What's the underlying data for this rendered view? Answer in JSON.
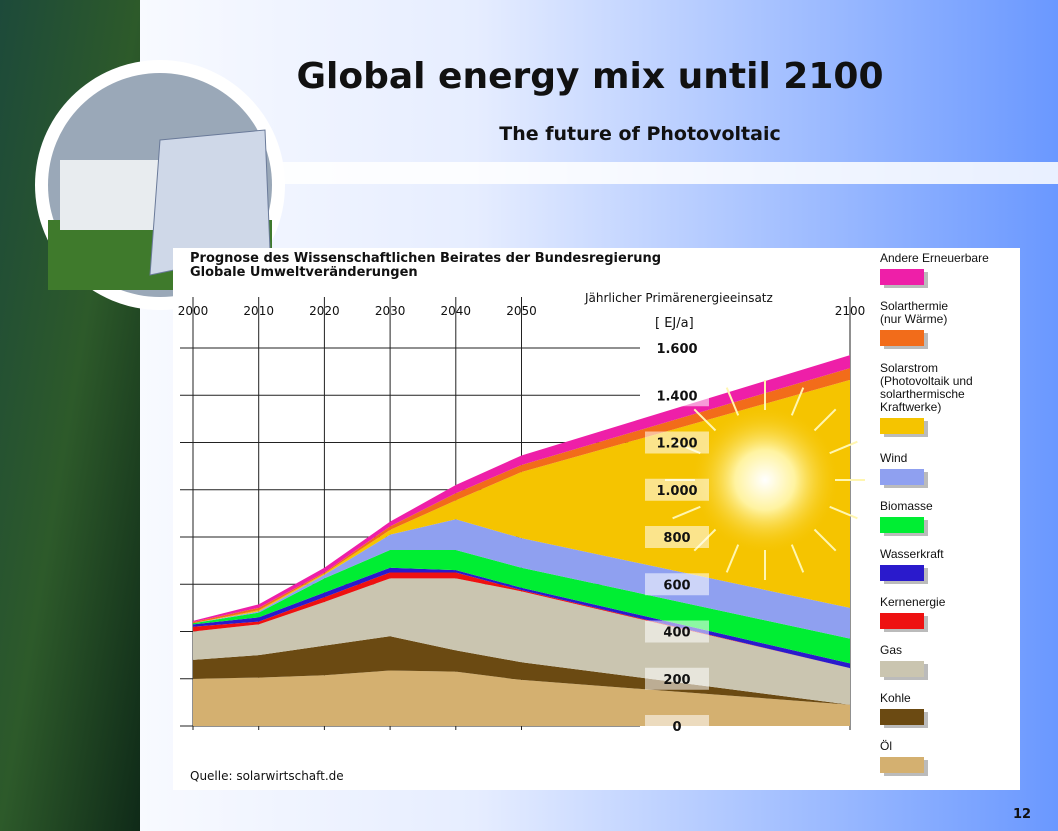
{
  "slide": {
    "title": "Global energy mix until 2100",
    "subtitle": "The future of Photovoltaic",
    "page_number": "12"
  },
  "chart_data": {
    "type": "area",
    "stacked": true,
    "title": "Prognose des Wissenschaftlichen Beirates der Bundesregierung\nGlobale Umweltveränderungen",
    "y_label": "Jährlicher Primärenergieeinsatz",
    "y_unit": "[ EJ/a]",
    "source": "Quelle: solarwirtschaft.de",
    "x": [
      2000,
      2010,
      2020,
      2030,
      2040,
      2050,
      2100
    ],
    "xlim": [
      2000,
      2100
    ],
    "xticks": [
      2000,
      2010,
      2020,
      2030,
      2040,
      2050,
      2100
    ],
    "ylim": [
      0,
      1600
    ],
    "yticks": [
      {
        "value": 1600,
        "label": "1.600"
      },
      {
        "value": 1400,
        "label": "1.400"
      },
      {
        "value": 1200,
        "label": "1.200"
      },
      {
        "value": 1000,
        "label": "1.000"
      },
      800,
      600,
      400,
      200,
      0
    ],
    "grid": true,
    "series": [
      {
        "name": "Öl",
        "color": "#d4b070",
        "values": [
          200,
          205,
          215,
          235,
          230,
          195,
          90
        ]
      },
      {
        "name": "Kohle",
        "color": "#6b4a12",
        "values": [
          80,
          95,
          125,
          145,
          90,
          75,
          0
        ]
      },
      {
        "name": "Gas",
        "color": "#cac5b0",
        "values": [
          120,
          130,
          185,
          245,
          305,
          300,
          155
        ]
      },
      {
        "name": "Kernenergie",
        "color": "#ee1111",
        "values": [
          20,
          12,
          20,
          25,
          25,
          5,
          0
        ]
      },
      {
        "name": "Wasserkraft",
        "color": "#2a1acc",
        "values": [
          10,
          18,
          20,
          20,
          10,
          10,
          20
        ]
      },
      {
        "name": "Biomasse",
        "color": "#00ee33",
        "values": [
          5,
          20,
          60,
          75,
          85,
          85,
          105
        ]
      },
      {
        "name": "Wind",
        "color": "#8fa0f0",
        "values": [
          0,
          5,
          15,
          65,
          130,
          125,
          130
        ]
      },
      {
        "name": "Solarstrom\n(Photovoltaik und\nsolarthermische\nKraftwerke)",
        "color": "#f5c400",
        "values": [
          0,
          5,
          5,
          20,
          80,
          280,
          965
        ]
      },
      {
        "name": "Solarthermie\n(nur Wärme)",
        "color": "#f26c1a",
        "values": [
          5,
          10,
          5,
          15,
          30,
          30,
          50
        ]
      },
      {
        "name": "Andere Erneuerbare",
        "color": "#ee1fa8",
        "values": [
          5,
          15,
          20,
          20,
          35,
          40,
          55
        ]
      }
    ]
  }
}
